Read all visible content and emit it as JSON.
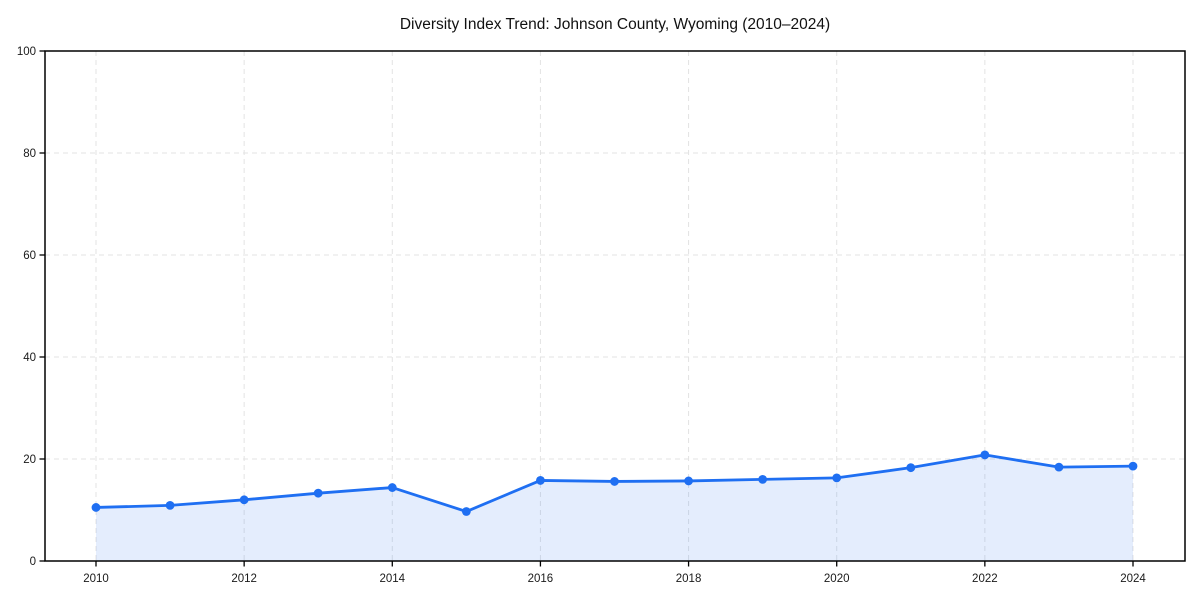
{
  "page": {
    "background_color": "#ffffff"
  },
  "chart_data": {
    "type": "line",
    "title": "Diversity Index Trend: Johnson County, Wyoming (2010–2024)",
    "xlabel": "",
    "ylabel": "",
    "x": [
      2010,
      2011,
      2012,
      2013,
      2014,
      2015,
      2016,
      2017,
      2018,
      2019,
      2020,
      2021,
      2022,
      2023,
      2024
    ],
    "series": [
      {
        "name": "Diversity Index",
        "values": [
          10.5,
          10.9,
          12.0,
          13.3,
          14.4,
          9.7,
          15.8,
          15.6,
          15.7,
          16.0,
          16.3,
          18.3,
          20.8,
          18.4,
          18.6
        ]
      }
    ],
    "ylim": [
      0,
      100
    ],
    "yticks": [
      0,
      20,
      40,
      60,
      80,
      100
    ],
    "xticks": [
      2010,
      2012,
      2014,
      2016,
      2018,
      2020,
      2022,
      2024
    ],
    "grid": {
      "visible": true,
      "style": "dashed",
      "color": "#e3e3e3"
    },
    "legend": "none",
    "area_fill": true,
    "marker": "circle",
    "colors": {
      "line": "#1f6ff2",
      "fill": "rgba(31,111,242,0.12)",
      "axis": "#000000",
      "tick_label": "#1a1a1a",
      "title": "#111111"
    }
  }
}
